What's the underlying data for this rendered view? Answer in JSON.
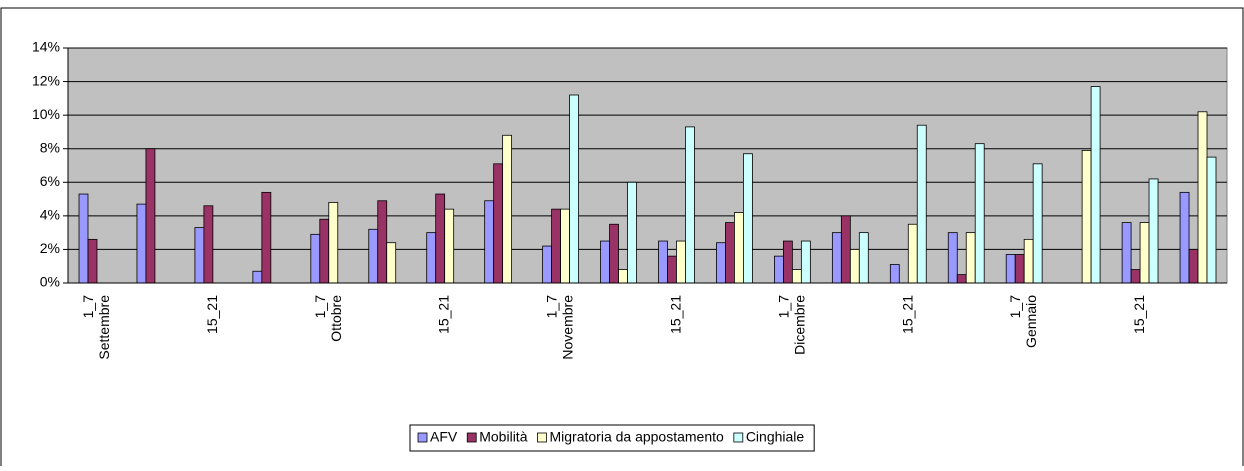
{
  "chart_data": {
    "type": "bar",
    "categories": [
      "1_7\nSettembre",
      null,
      "15_21",
      null,
      "1_7\nOttobre",
      null,
      "15_21",
      null,
      "1_7\nNovembre",
      null,
      "15_21",
      null,
      "1_7\nDicembre",
      null,
      "15_21",
      null,
      "1_7\nGennaio",
      null,
      "15_21",
      null
    ],
    "series": [
      {
        "name": "AFV",
        "color": "#9999ff",
        "values": [
          5.3,
          4.7,
          3.3,
          0.7,
          2.9,
          3.2,
          3.0,
          4.9,
          2.2,
          2.5,
          2.5,
          2.4,
          1.6,
          3.0,
          1.1,
          3.0,
          1.7,
          0,
          3.6,
          5.4
        ]
      },
      {
        "name": "Mobilità",
        "color": "#993366",
        "values": [
          2.6,
          8.0,
          4.6,
          5.4,
          3.8,
          4.9,
          5.3,
          7.1,
          4.4,
          3.5,
          1.6,
          3.6,
          2.5,
          4.0,
          0,
          0.5,
          1.7,
          0,
          0.8,
          2.0
        ]
      },
      {
        "name": "Migratoria da appostamento",
        "color": "#ffffcc",
        "values": [
          0,
          0,
          0,
          0,
          4.8,
          2.4,
          4.4,
          8.8,
          4.4,
          0.8,
          2.5,
          4.2,
          0.8,
          2.0,
          3.5,
          3.0,
          2.6,
          7.9,
          3.6,
          10.2
        ]
      },
      {
        "name": "Cinghiale",
        "color": "#ccffff",
        "values": [
          0,
          0,
          0,
          0,
          0,
          0,
          0,
          0,
          11.2,
          6.0,
          9.3,
          7.7,
          2.5,
          3.0,
          9.4,
          8.3,
          7.1,
          11.7,
          6.2,
          7.5
        ]
      }
    ],
    "ylim": [
      0,
      14
    ],
    "yticks": [
      {
        "value": 0,
        "label": "0%"
      },
      {
        "value": 2,
        "label": "2%"
      },
      {
        "value": 4,
        "label": "4%"
      },
      {
        "value": 6,
        "label": "6%"
      },
      {
        "value": 8,
        "label": "8%"
      },
      {
        "value": 10,
        "label": "10%"
      },
      {
        "value": 12,
        "label": "12%"
      },
      {
        "value": 14,
        "label": "14%"
      }
    ],
    "grid": true,
    "legend": "bottom",
    "background": "#c0c0c0"
  }
}
